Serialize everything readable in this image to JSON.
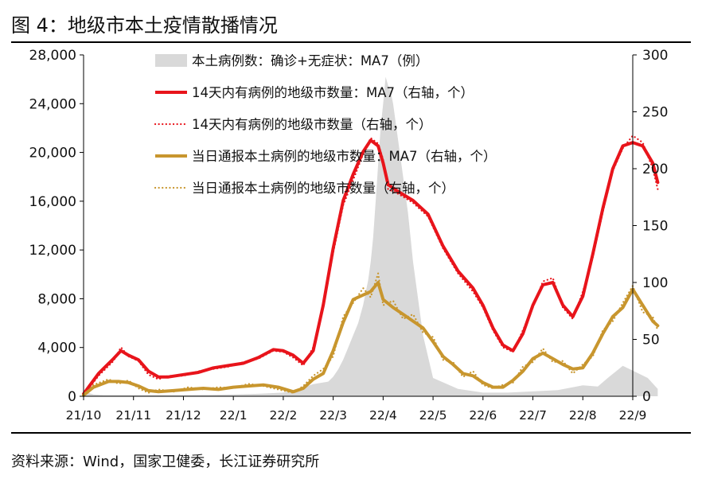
{
  "figure_title": "图 4：地级市本土疫情散播情况",
  "source": "资料来源：Wind，国家卫健委，长江证券研究所",
  "chart_data": {
    "type": "line",
    "x_labels": [
      "21/10",
      "21/11",
      "21/12",
      "22/1",
      "22/2",
      "22/3",
      "22/4",
      "22/5",
      "22/6",
      "22/7",
      "22/8",
      "22/9"
    ],
    "left_axis": {
      "range": [
        0,
        28000
      ],
      "ticks": [
        "0",
        "4,000",
        "8,000",
        "12,000",
        "16,000",
        "20,000",
        "24,000",
        "28,000"
      ]
    },
    "right_axis": {
      "range": [
        0,
        300
      ],
      "ticks": [
        "0",
        "50",
        "100",
        "150",
        "200",
        "250",
        "300"
      ]
    },
    "grid": false,
    "legend_position": "top-center",
    "colors": {
      "cases": "#d9d9d9",
      "cities14": "#e8141b",
      "citiesDaily": "#c8962e"
    },
    "series": [
      {
        "name": "本土病例数：确诊+无症状：MA7（例）",
        "axis": "left",
        "style": "area",
        "t": [
          0,
          0.2,
          0.4,
          0.6,
          0.8,
          1.0,
          1.5,
          2.0,
          2.5,
          3.0,
          3.5,
          4.0,
          4.3,
          4.6,
          4.9,
          5.0,
          5.1,
          5.2,
          5.3,
          5.4,
          5.5,
          5.6,
          5.7,
          5.75,
          5.8,
          5.85,
          5.9,
          5.95,
          6.0,
          6.05,
          6.1,
          6.15,
          6.2,
          6.3,
          6.4,
          6.5,
          6.6,
          6.8,
          7.0,
          7.5,
          8.0,
          8.5,
          9.0,
          9.5,
          10.0,
          10.3,
          10.5,
          10.8,
          11.0,
          11.3,
          11.5
        ],
        "values": [
          400,
          150,
          100,
          100,
          100,
          100,
          100,
          100,
          120,
          150,
          200,
          300,
          600,
          1000,
          1200,
          1600,
          2200,
          3000,
          4000,
          5000,
          6000,
          7500,
          9500,
          11000,
          13000,
          16000,
          19000,
          22000,
          24000,
          26200,
          25500,
          25000,
          24000,
          21000,
          18000,
          15000,
          11000,
          5000,
          1500,
          600,
          300,
          300,
          400,
          500,
          900,
          800,
          1500,
          2500,
          2100,
          1500,
          600
        ]
      },
      {
        "name": "14天内有病例的地级市数量：MA7（右轴，个）",
        "axis": "right",
        "style": "line",
        "t": [
          0,
          0.3,
          0.6,
          0.75,
          0.9,
          1.1,
          1.3,
          1.5,
          1.7,
          2.0,
          2.3,
          2.6,
          2.9,
          3.2,
          3.5,
          3.8,
          4.0,
          4.2,
          4.4,
          4.6,
          4.8,
          5.0,
          5.2,
          5.4,
          5.6,
          5.75,
          5.9,
          6.0,
          6.1,
          6.3,
          6.6,
          6.9,
          7.2,
          7.5,
          7.8,
          8.0,
          8.2,
          8.4,
          8.6,
          8.8,
          9.0,
          9.2,
          9.4,
          9.6,
          9.8,
          10.0,
          10.2,
          10.4,
          10.6,
          10.8,
          11.0,
          11.2,
          11.4,
          11.5
        ],
        "values": [
          2,
          20,
          33,
          40,
          36,
          32,
          22,
          17,
          17,
          19,
          21,
          25,
          27,
          29,
          34,
          41,
          40,
          36,
          29,
          40,
          80,
          130,
          172,
          195,
          215,
          225,
          220,
          205,
          186,
          180,
          172,
          160,
          132,
          110,
          95,
          80,
          60,
          45,
          40,
          55,
          80,
          98,
          100,
          80,
          70,
          88,
          125,
          165,
          200,
          220,
          223,
          220,
          205,
          188
        ]
      },
      {
        "name": "14天内有病例的地级市数量（右轴，个）",
        "axis": "right",
        "style": "dotted",
        "t": [
          0,
          0.3,
          0.6,
          0.75,
          0.9,
          1.1,
          1.3,
          1.5,
          1.7,
          2.0,
          2.3,
          2.6,
          2.9,
          3.2,
          3.5,
          3.8,
          4.0,
          4.2,
          4.4,
          4.6,
          4.8,
          5.0,
          5.2,
          5.4,
          5.6,
          5.75,
          5.9,
          6.0,
          6.1,
          6.3,
          6.6,
          6.9,
          7.2,
          7.5,
          7.8,
          8.0,
          8.2,
          8.4,
          8.6,
          8.8,
          9.0,
          9.2,
          9.4,
          9.6,
          9.8,
          10.0,
          10.2,
          10.4,
          10.6,
          10.8,
          11.0,
          11.2,
          11.4,
          11.5
        ],
        "values": [
          1,
          18,
          31,
          43,
          35,
          31,
          19,
          15,
          18,
          18,
          22,
          24,
          26,
          30,
          33,
          40,
          39,
          34,
          27,
          43,
          78,
          126,
          168,
          190,
          213,
          227,
          222,
          208,
          182,
          178,
          170,
          158,
          130,
          108,
          92,
          78,
          58,
          43,
          39,
          58,
          78,
          101,
          104,
          78,
          68,
          92,
          122,
          162,
          198,
          218,
          229,
          223,
          200,
          182
        ]
      },
      {
        "name": "当日通报本土病例的地级市数量：MA7（右轴，个）",
        "axis": "right",
        "style": "line",
        "t": [
          0,
          0.2,
          0.5,
          0.7,
          0.9,
          1.1,
          1.3,
          1.5,
          1.8,
          2.1,
          2.4,
          2.7,
          3.0,
          3.3,
          3.6,
          3.9,
          4.2,
          4.4,
          4.6,
          4.8,
          5.0,
          5.2,
          5.4,
          5.6,
          5.75,
          5.9,
          6.0,
          6.2,
          6.4,
          6.6,
          6.8,
          7.0,
          7.2,
          7.4,
          7.6,
          7.8,
          8.0,
          8.2,
          8.4,
          8.6,
          8.8,
          9.0,
          9.2,
          9.4,
          9.6,
          9.8,
          10.0,
          10.2,
          10.4,
          10.6,
          10.8,
          11.0,
          11.2,
          11.4,
          11.5
        ],
        "values": [
          1,
          8,
          13,
          13,
          12,
          9,
          5,
          4,
          5,
          6,
          7,
          6,
          8,
          9,
          10,
          8,
          4,
          7,
          15,
          20,
          40,
          65,
          85,
          89,
          92,
          100,
          85,
          78,
          72,
          66,
          60,
          48,
          35,
          28,
          20,
          18,
          12,
          8,
          8,
          14,
          22,
          33,
          38,
          33,
          28,
          24,
          25,
          38,
          55,
          70,
          78,
          94,
          80,
          66,
          62
        ]
      },
      {
        "name": "当日通报本土病例的地级市数量（右轴，个）",
        "axis": "right",
        "style": "dotted",
        "t": [
          0,
          0.2,
          0.5,
          0.7,
          0.9,
          1.1,
          1.3,
          1.5,
          1.8,
          2.1,
          2.4,
          2.7,
          3.0,
          3.3,
          3.6,
          3.9,
          4.2,
          4.4,
          4.6,
          4.8,
          5.0,
          5.2,
          5.4,
          5.6,
          5.75,
          5.9,
          6.0,
          6.2,
          6.4,
          6.6,
          6.8,
          7.0,
          7.2,
          7.4,
          7.6,
          7.8,
          8.0,
          8.2,
          8.4,
          8.6,
          8.8,
          9.0,
          9.2,
          9.4,
          9.6,
          9.8,
          10.0,
          10.2,
          10.4,
          10.6,
          10.8,
          11.0,
          11.2,
          11.4,
          11.5
        ],
        "values": [
          0,
          10,
          15,
          11,
          14,
          7,
          3,
          6,
          4,
          8,
          6,
          8,
          7,
          11,
          9,
          6,
          3,
          9,
          18,
          24,
          35,
          70,
          82,
          95,
          87,
          108,
          80,
          84,
          68,
          72,
          56,
          52,
          32,
          30,
          17,
          22,
          10,
          7,
          10,
          12,
          26,
          30,
          42,
          30,
          31,
          20,
          28,
          35,
          58,
          66,
          82,
          97,
          74,
          70,
          58
        ]
      }
    ]
  }
}
